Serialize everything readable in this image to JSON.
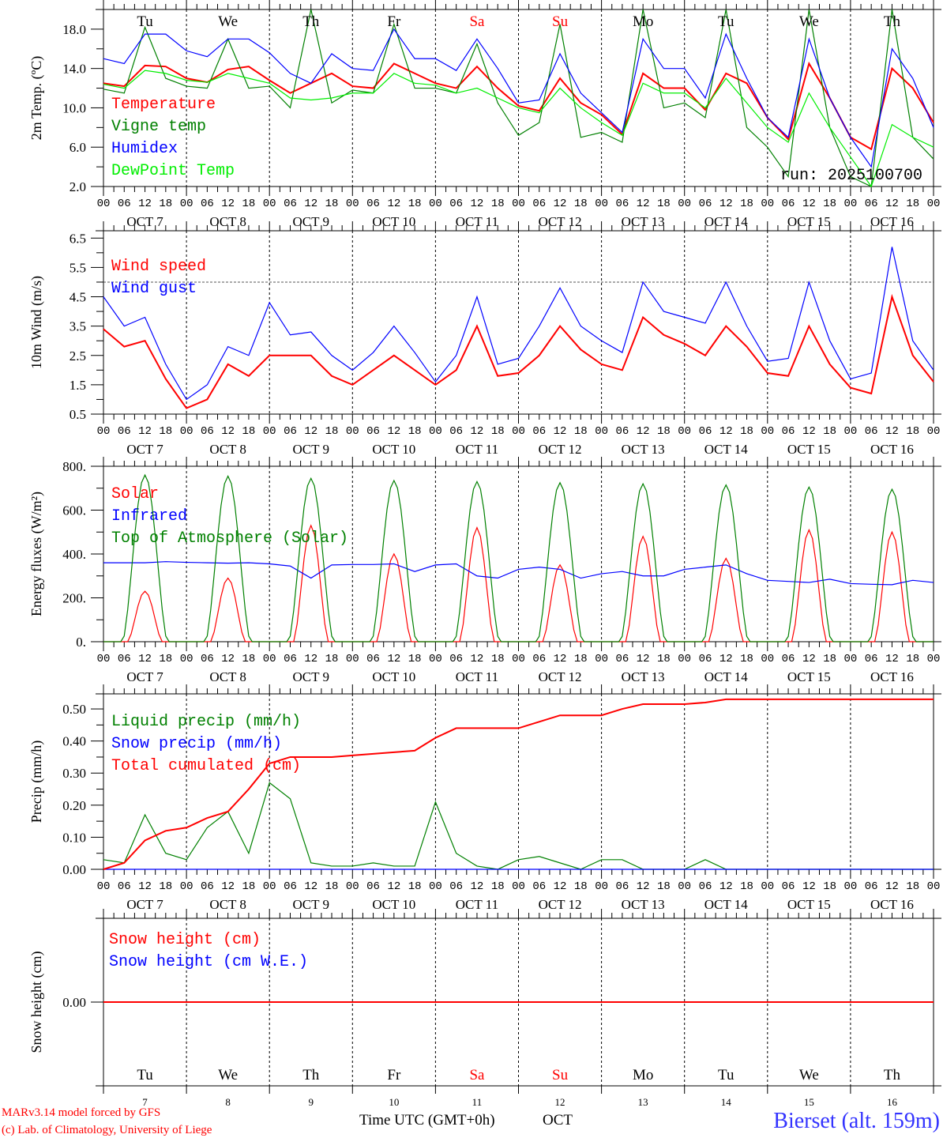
{
  "chart_data": {
    "type": "line",
    "run_label": "run: 2025100700",
    "x_unit": "hours since 00 UTC OCT 7 (6-hourly)",
    "xlim": [
      0,
      240
    ],
    "hour_ticks": [
      "00",
      "06",
      "12",
      "18"
    ],
    "month": "OCT",
    "days": [
      "7",
      "8",
      "9",
      "10",
      "11",
      "12",
      "13",
      "14",
      "15",
      "16"
    ],
    "day_names": [
      {
        "name": "Tu",
        "color": "#000000"
      },
      {
        "name": "We",
        "color": "#000000"
      },
      {
        "name": "Th",
        "color": "#000000"
      },
      {
        "name": "Fr",
        "color": "#000000"
      },
      {
        "name": "Sa",
        "color": "#ff0000"
      },
      {
        "name": "Su",
        "color": "#ff0000"
      },
      {
        "name": "Mo",
        "color": "#000000"
      },
      {
        "name": "Tu",
        "color": "#000000"
      },
      {
        "name": "We",
        "color": "#000000"
      },
      {
        "name": "Th",
        "color": "#000000"
      }
    ],
    "panels": [
      {
        "id": "temperature",
        "ylabel": "2m Temp. (ºC)",
        "ylim": [
          2,
          20
        ],
        "ticks": [
          "18.0",
          "14.0",
          "10.0",
          "6.0",
          "2.0"
        ],
        "tick_values": [
          18,
          14,
          10,
          6,
          2
        ],
        "series": [
          {
            "name": "Temperature",
            "color": "#ff0000",
            "values": [
              12.5,
              12.2,
              14.3,
              14.2,
              13.0,
              12.6,
              13.9,
              14.2,
              12.8,
              11.5,
              12.5,
              13.5,
              12.2,
              12.0,
              14.5,
              13.5,
              12.5,
              12.0,
              14.2,
              12.0,
              10.2,
              9.7,
              13.0,
              10.5,
              9.3,
              7.3,
              13.5,
              12.0,
              12.0,
              9.8,
              13.5,
              12.5,
              9.0,
              6.8,
              14.5,
              11.0,
              7.0,
              5.8,
              14.0,
              12.0,
              8.5
            ]
          },
          {
            "name": "Vigne temp",
            "color": "#008000",
            "values": [
              11.9,
              11.5,
              18.2,
              13.0,
              12.2,
              12.0,
              17.0,
              12.0,
              12.2,
              10.0,
              20.0,
              10.5,
              11.8,
              11.5,
              18.5,
              12.0,
              12.0,
              11.5,
              16.5,
              10.5,
              7.2,
              8.5,
              18.5,
              7.0,
              7.5,
              6.5,
              20.0,
              10.0,
              10.5,
              9.0,
              20.0,
              8.0,
              6.0,
              3.0,
              20.0,
              8.0,
              3.0,
              2.0,
              20.0,
              7.0,
              4.8
            ]
          },
          {
            "name": "Humidex",
            "color": "#0000ff",
            "values": [
              15.0,
              14.5,
              17.5,
              17.5,
              15.8,
              15.2,
              17.0,
              17.0,
              15.6,
              13.5,
              12.5,
              15.5,
              14.0,
              13.8,
              18.0,
              15.0,
              15.0,
              13.8,
              17.0,
              14.0,
              10.5,
              10.8,
              15.5,
              11.5,
              9.5,
              7.5,
              17.0,
              14.0,
              14.0,
              11.0,
              17.5,
              13.0,
              9.0,
              7.0,
              17.0,
              11.0,
              7.0,
              4.0,
              16.0,
              13.0,
              8.0
            ]
          },
          {
            "name": "DewPoint Temp",
            "color": "#00ee00",
            "values": [
              12.4,
              12.0,
              13.8,
              13.5,
              12.8,
              12.6,
              13.5,
              13.0,
              12.5,
              11.0,
              10.8,
              11.0,
              11.5,
              11.5,
              13.5,
              12.5,
              12.3,
              11.5,
              12.0,
              11.0,
              10.0,
              9.5,
              12.0,
              10.0,
              8.5,
              7.2,
              12.5,
              11.5,
              11.5,
              10.0,
              13.0,
              10.5,
              8.0,
              6.5,
              11.5,
              8.0,
              5.0,
              2.0,
              8.3,
              7.0,
              6.0
            ]
          }
        ]
      },
      {
        "id": "wind",
        "ylabel": "10m Wind (m/s)",
        "ylim": [
          0.5,
          6.75
        ],
        "ref_line": 5.0,
        "ticks": [
          "6.5",
          "5.5",
          "4.5",
          "3.5",
          "2.5",
          "1.5",
          "0.5"
        ],
        "tick_values": [
          6.5,
          5.5,
          4.5,
          3.5,
          2.5,
          1.5,
          0.5
        ],
        "series": [
          {
            "name": "Wind speed",
            "color": "#ff0000",
            "values": [
              3.4,
              2.8,
              3.0,
              1.7,
              0.7,
              1.0,
              2.2,
              1.8,
              2.5,
              2.5,
              2.5,
              1.8,
              1.5,
              2.0,
              2.5,
              2.0,
              1.5,
              2.0,
              3.5,
              1.8,
              1.9,
              2.5,
              3.5,
              2.7,
              2.2,
              2.0,
              3.8,
              3.2,
              2.9,
              2.5,
              3.5,
              2.8,
              1.9,
              1.8,
              3.5,
              2.2,
              1.4,
              1.2,
              4.5,
              2.5,
              1.6
            ]
          },
          {
            "name": "Wind gust",
            "color": "#0000ff",
            "values": [
              4.5,
              3.5,
              3.8,
              2.2,
              1.0,
              1.5,
              2.8,
              2.5,
              4.3,
              3.2,
              3.3,
              2.5,
              2.0,
              2.6,
              3.5,
              2.6,
              1.6,
              2.5,
              4.5,
              2.2,
              2.4,
              3.5,
              4.8,
              3.5,
              3.0,
              2.6,
              5.0,
              4.0,
              3.8,
              3.6,
              5.0,
              3.5,
              2.3,
              2.4,
              5.0,
              3.0,
              1.7,
              1.9,
              6.2,
              3.0,
              2.0
            ]
          }
        ]
      },
      {
        "id": "energy",
        "ylabel": "Energy fluxes (W/m²)",
        "ylim": [
          0,
          800
        ],
        "ticks": [
          "800.",
          "600.",
          "400.",
          "200.",
          "0."
        ],
        "tick_values": [
          800,
          600,
          400,
          200,
          0
        ],
        "series": [
          {
            "name": "Solar",
            "color": "#ff0000",
            "daily_peaks": [
              230,
              290,
              530,
              400,
              520,
              350,
              480,
              380,
              510,
              500
            ]
          },
          {
            "name": "Infrared",
            "color": "#0000ff",
            "values": [
              360,
              360,
              360,
              365,
              362,
              360,
              358,
              360,
              355,
              345,
              290,
              350,
              352,
              352,
              355,
              320,
              350,
              355,
              300,
              290,
              330,
              340,
              330,
              290,
              310,
              320,
              300,
              300,
              330,
              340,
              350,
              310,
              280,
              275,
              270,
              285,
              265,
              262,
              260,
              280,
              270
            ]
          },
          {
            "name": "Top of Atmosphere (Solar)",
            "color": "#008000",
            "daily_peaks": [
              760,
              755,
              745,
              735,
              730,
              725,
              720,
              715,
              705,
              695
            ]
          }
        ]
      },
      {
        "id": "precip",
        "ylabel": "Precip (mm/h)",
        "ylim": [
          0,
          0.547
        ],
        "ticks": [
          "0.50",
          "0.40",
          "0.30",
          "0.20",
          "0.10",
          "0.00"
        ],
        "tick_values": [
          0.5,
          0.4,
          0.3,
          0.2,
          0.1,
          0.0
        ],
        "series": [
          {
            "name": "Liquid precip (mm/h)",
            "color": "#008000",
            "values": [
              0.03,
              0.02,
              0.17,
              0.05,
              0.03,
              0.13,
              0.18,
              0.05,
              0.27,
              0.22,
              0.02,
              0.01,
              0.01,
              0.02,
              0.01,
              0.01,
              0.21,
              0.05,
              0.01,
              0,
              0.03,
              0.04,
              0.02,
              0,
              0.03,
              0.03,
              0,
              0,
              0,
              0.03,
              0,
              0,
              0,
              0,
              0,
              0,
              0,
              0,
              0,
              0,
              0
            ]
          },
          {
            "name": "Snow precip (mm/h)",
            "color": "#0000ff",
            "values": [
              0,
              0,
              0,
              0,
              0,
              0,
              0,
              0,
              0,
              0,
              0,
              0,
              0,
              0,
              0,
              0,
              0,
              0,
              0,
              0,
              0,
              0,
              0,
              0,
              0,
              0,
              0,
              0,
              0,
              0,
              0,
              0,
              0,
              0,
              0,
              0,
              0,
              0,
              0,
              0,
              0
            ]
          },
          {
            "name": "Total cumulated (cm)",
            "color": "#ff0000",
            "values": [
              0,
              0.02,
              0.09,
              0.12,
              0.13,
              0.16,
              0.18,
              0.25,
              0.33,
              0.35,
              0.35,
              0.35,
              0.355,
              0.36,
              0.365,
              0.37,
              0.41,
              0.44,
              0.44,
              0.44,
              0.44,
              0.46,
              0.48,
              0.48,
              0.48,
              0.5,
              0.515,
              0.515,
              0.515,
              0.52,
              0.53,
              0.53,
              0.53,
              0.53,
              0.53,
              0.53,
              0.53,
              0.53,
              0.53,
              0.53,
              0.53
            ]
          }
        ]
      },
      {
        "id": "snow",
        "ylabel": "Snow height (cm)",
        "ylim": [
          -1,
          1
        ],
        "ticks": [
          "0.00"
        ],
        "tick_values": [
          0
        ],
        "series": [
          {
            "name": "Snow height (cm)",
            "color": "#ff0000",
            "values": [
              0,
              0
            ]
          },
          {
            "name": "Snow height (cm W.E.)",
            "color": "#0000ff",
            "values": []
          }
        ]
      }
    ],
    "xlabel": "Time UTC (GMT+0h)",
    "xlabel_month": "OCT"
  },
  "footer": {
    "credit1": "MARv3.14 model forced by GFS",
    "credit2": "(c) Lab. of Climatology, University of Liege",
    "station": "Bierset (alt. 159m)"
  }
}
